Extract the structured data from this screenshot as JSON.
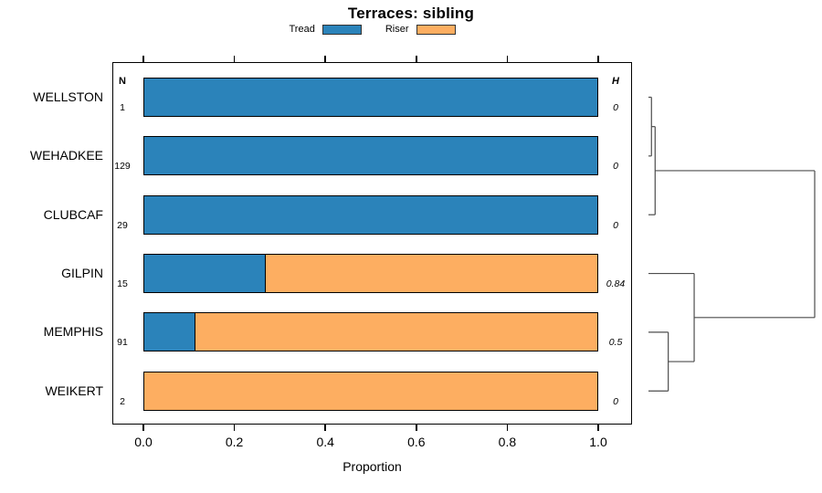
{
  "title": "Terraces: sibling",
  "legend": [
    {
      "label": "Tread",
      "color": "#2B83BA"
    },
    {
      "label": "Riser",
      "color": "#FDAE61"
    }
  ],
  "table_headers": {
    "n": "N",
    "h": "H"
  },
  "x_axis": {
    "label": "Proportion",
    "ticks": [
      "0.0",
      "0.2",
      "0.4",
      "0.6",
      "0.8",
      "1.0"
    ]
  },
  "rows": [
    {
      "label": "WELLSTON",
      "n": "1",
      "h": "0",
      "tread": 1.0,
      "riser": 0.0
    },
    {
      "label": "WEHADKEE",
      "n": "129",
      "h": "0",
      "tread": 1.0,
      "riser": 0.0
    },
    {
      "label": "CLUBCAF",
      "n": "29",
      "h": "0",
      "tread": 1.0,
      "riser": 0.0
    },
    {
      "label": "GILPIN",
      "n": "15",
      "h": "0.84",
      "tread": 0.267,
      "riser": 0.733
    },
    {
      "label": "MEMPHIS",
      "n": "91",
      "h": "0.5",
      "tread": 0.11,
      "riser": 0.89
    },
    {
      "label": "WEIKERT",
      "n": "2",
      "h": "0",
      "tread": 0.0,
      "riser": 1.0
    }
  ],
  "chart_data": {
    "type": "bar",
    "orientation": "horizontal",
    "stacked": true,
    "title": "Terraces: sibling",
    "xlabel": "Proportion",
    "xlim": [
      0,
      1
    ],
    "grid": false,
    "legend_position": "top",
    "categories": [
      "WELLSTON",
      "WEHADKEE",
      "CLUBCAF",
      "GILPIN",
      "MEMPHIS",
      "WEIKERT"
    ],
    "series": [
      {
        "name": "Tread",
        "color": "#2B83BA",
        "values": [
          1.0,
          1.0,
          1.0,
          0.267,
          0.11,
          0.0
        ]
      },
      {
        "name": "Riser",
        "color": "#FDAE61",
        "values": [
          0.0,
          0.0,
          0.0,
          0.733,
          0.89,
          1.0
        ]
      }
    ],
    "n_values": [
      1,
      129,
      29,
      15,
      91,
      2
    ],
    "h_values": [
      0,
      0,
      0,
      0.84,
      0.5,
      0
    ],
    "dendrogram": {
      "side": "right",
      "leaf_order": [
        "WELLSTON",
        "WEHADKEE",
        "CLUBCAF",
        "GILPIN",
        "MEMPHIS",
        "WEIKERT"
      ],
      "merges": [
        {
          "a": "L0",
          "b": "L1",
          "height": 0.018
        },
        {
          "a": "M0",
          "b": "L2",
          "height": 0.04
        },
        {
          "a": "L4",
          "b": "L5",
          "height": 0.119
        },
        {
          "a": "L3",
          "b": "M2",
          "height": 0.275
        },
        {
          "a": "M1",
          "b": "M3",
          "height": 1.0
        }
      ]
    }
  }
}
